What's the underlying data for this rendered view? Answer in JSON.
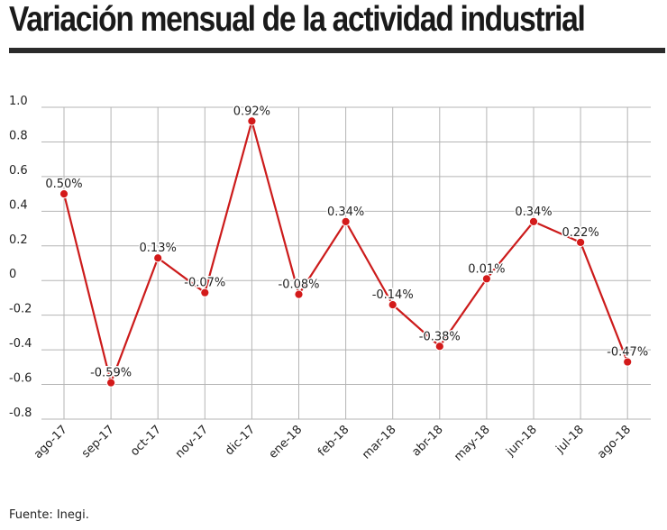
{
  "title": "Variación mensual de la actividad industrial",
  "source": "Fuente: Inegi.",
  "colors": {
    "line": "#cc1b1b",
    "marker": "#d31a1a",
    "grid": "#b5b5b5",
    "text": "#222222"
  },
  "chart_data": {
    "type": "line",
    "title": "Variación mensual de la actividad industrial",
    "xlabel": "",
    "ylabel": "",
    "ylim": [
      -0.8,
      1.0
    ],
    "yticks": [
      1.0,
      0.8,
      0.6,
      0.4,
      0.2,
      0,
      -0.2,
      -0.4,
      -0.6,
      -0.8
    ],
    "ytick_labels": [
      "1.0",
      "0.8",
      "0.6",
      "0.4",
      "0.2",
      "0",
      "-0.2",
      "-0.4",
      "-0.6",
      "-0.8"
    ],
    "categories": [
      "ago-17",
      "sep-17",
      "oct-17",
      "nov-17",
      "dic-17",
      "ene-18",
      "feb-18",
      "mar-18",
      "abr-18",
      "may-18",
      "jun-18",
      "jul-18",
      "ago-18"
    ],
    "series": [
      {
        "values": [
          0.5,
          -0.59,
          0.13,
          -0.07,
          0.92,
          -0.08,
          0.34,
          -0.14,
          -0.38,
          0.01,
          0.34,
          0.22,
          -0.47
        ],
        "labels": [
          "0.50%",
          "-0.59%",
          "0.13%",
          "-0.07%",
          "0.92%",
          "-0.08%",
          "0.34%",
          "-0.14%",
          "-0.38%",
          "0.01%",
          "0.34%",
          "0.22%",
          "-0.47%"
        ]
      }
    ],
    "grid": true,
    "legend": "none"
  }
}
